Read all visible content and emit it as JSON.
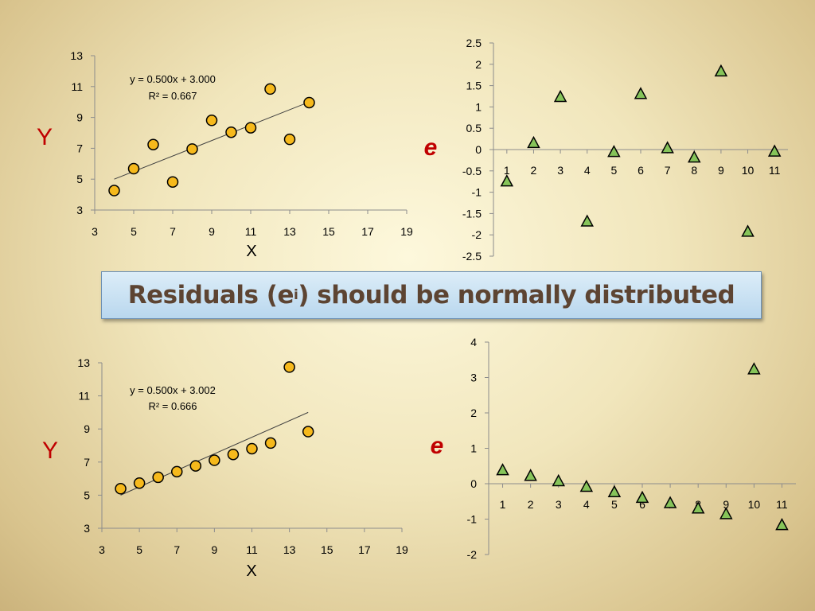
{
  "banner": {
    "text_before": "Residuals (e",
    "subscript": "i",
    "text_after": ") should be normally distributed"
  },
  "colors": {
    "point_fill": "#f6b91c",
    "triangle_fill": "#86c45a",
    "axis_label_red": "#c00000",
    "banner_text": "#5d4432"
  },
  "chart_data": [
    {
      "type": "scatter",
      "title": "",
      "xlabel": "X",
      "ylabel": "Y",
      "xlim": [
        3,
        19
      ],
      "ylim": [
        3,
        13
      ],
      "xticks": [
        3,
        5,
        7,
        9,
        11,
        13,
        15,
        17,
        19
      ],
      "yticks": [
        3,
        5,
        7,
        9,
        11,
        13
      ],
      "points": [
        [
          4,
          4.26
        ],
        [
          5,
          5.68
        ],
        [
          6,
          7.24
        ],
        [
          7,
          4.82
        ],
        [
          8,
          6.95
        ],
        [
          9,
          8.81
        ],
        [
          10,
          8.04
        ],
        [
          11,
          8.33
        ],
        [
          12,
          10.84
        ],
        [
          13,
          7.58
        ],
        [
          14,
          9.96
        ]
      ],
      "trendline": {
        "slope": 0.5,
        "intercept": 3.0,
        "x_range": [
          4,
          14
        ]
      },
      "annotations": [
        "y = 0.500x + 3.000",
        "R² = 0.667"
      ],
      "grid": false
    },
    {
      "type": "scatter",
      "title": "",
      "xlabel": "",
      "ylabel": "e",
      "xlim": [
        0.5,
        11.5
      ],
      "ylim": [
        -2.5,
        2.5
      ],
      "xticks": [
        1,
        2,
        3,
        4,
        5,
        6,
        7,
        8,
        9,
        10,
        11
      ],
      "yticks": [
        -2.5,
        -2,
        -1.5,
        -1,
        -0.5,
        0,
        0.5,
        1,
        1.5,
        2,
        2.5
      ],
      "x": [
        1,
        2,
        3,
        4,
        5,
        6,
        7,
        8,
        9,
        10,
        11
      ],
      "y": [
        -0.74,
        0.16,
        1.24,
        -1.68,
        -0.05,
        1.31,
        0.04,
        -0.18,
        1.84,
        -1.92,
        -0.04
      ],
      "marker": "triangle",
      "grid": false
    },
    {
      "type": "scatter",
      "title": "",
      "xlabel": "X",
      "ylabel": "Y",
      "xlim": [
        3,
        19
      ],
      "ylim": [
        3,
        13
      ],
      "xticks": [
        3,
        5,
        7,
        9,
        11,
        13,
        15,
        17,
        19
      ],
      "yticks": [
        3,
        5,
        7,
        9,
        11,
        13
      ],
      "points": [
        [
          4,
          5.39
        ],
        [
          5,
          5.73
        ],
        [
          6,
          6.08
        ],
        [
          7,
          6.42
        ],
        [
          8,
          6.77
        ],
        [
          9,
          7.11
        ],
        [
          10,
          7.46
        ],
        [
          11,
          7.81
        ],
        [
          12,
          8.15
        ],
        [
          13,
          12.74
        ],
        [
          14,
          8.84
        ]
      ],
      "trendline": {
        "slope": 0.5,
        "intercept": 3.002,
        "x_range": [
          4,
          14
        ]
      },
      "annotations": [
        "y = 0.500x + 3.002",
        "R² = 0.666"
      ],
      "grid": false
    },
    {
      "type": "scatter",
      "title": "",
      "xlabel": "",
      "ylabel": "e",
      "xlim": [
        0.5,
        11.5
      ],
      "ylim": [
        -2,
        4
      ],
      "xticks": [
        1,
        2,
        3,
        4,
        5,
        6,
        7,
        8,
        9,
        10,
        11
      ],
      "yticks": [
        -2,
        -1,
        0,
        1,
        2,
        3,
        4
      ],
      "x": [
        1,
        2,
        3,
        4,
        5,
        6,
        7,
        8,
        9,
        10,
        11
      ],
      "y": [
        0.39,
        0.23,
        0.08,
        -0.08,
        -0.23,
        -0.39,
        -0.54,
        -0.69,
        -0.85,
        3.24,
        -1.16
      ],
      "marker": "triangle",
      "grid": false
    }
  ]
}
